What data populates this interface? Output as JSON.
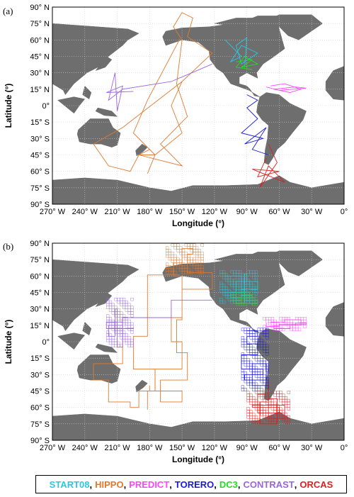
{
  "panels": [
    {
      "label": "(a)",
      "mode": "lines"
    },
    {
      "label": "(b)",
      "mode": "grid"
    }
  ],
  "axes": {
    "xlabel": "Longitude (°)",
    "ylabel": "Latitude (°)",
    "xticks": [
      "270° W",
      "240° W",
      "210° W",
      "180° W",
      "150° W",
      "120° W",
      "90° W",
      "60° W",
      "30° W",
      "0°"
    ],
    "yticks": [
      "90° N",
      "75° N",
      "60° N",
      "45° N",
      "30° N",
      "15° N",
      "0°",
      "15° S",
      "30° S",
      "45° S",
      "60° S",
      "75° S",
      "90° S"
    ]
  },
  "colors": {
    "land": "#6e6e6e",
    "ocean": "#ffffff",
    "grid": "#cfcfcf"
  },
  "campaigns": [
    {
      "name": "START08",
      "color": "#29c8e0"
    },
    {
      "name": "HIPPO",
      "color": "#e07a2e"
    },
    {
      "name": "PREDICT",
      "color": "#ff44ff"
    },
    {
      "name": "TORERO",
      "color": "#1a1ad8"
    },
    {
      "name": "DC3",
      "color": "#22dd22"
    },
    {
      "name": "CONTRAST",
      "color": "#9a66dd"
    },
    {
      "name": "ORCAS",
      "color": "#dd1f1f"
    }
  ],
  "chart_data": {
    "type": "map",
    "xlim": [
      -270,
      0
    ],
    "ylim": [
      -90,
      90
    ],
    "grid": true,
    "tracks": [
      {
        "campaign": "HIPPO",
        "points": [
          [
            -150,
            60
          ],
          [
            -158,
            72
          ],
          [
            -150,
            85
          ],
          [
            -140,
            80
          ],
          [
            -145,
            63
          ],
          [
            -122,
            48
          ],
          [
            -150,
            22
          ],
          [
            -160,
            0
          ],
          [
            -150,
            -25
          ],
          [
            -175,
            -45
          ],
          [
            -190,
            -45
          ],
          [
            -150,
            -55
          ],
          [
            -170,
            -35
          ],
          [
            -145,
            -10
          ],
          [
            -155,
            20
          ],
          [
            -150,
            60
          ]
        ]
      },
      {
        "campaign": "HIPPO",
        "points": [
          [
            -150,
            22
          ],
          [
            -205,
            -20
          ],
          [
            -232,
            -35
          ],
          [
            -218,
            -55
          ],
          [
            -198,
            -60
          ],
          [
            -190,
            -45
          ],
          [
            -180,
            -40
          ]
        ]
      },
      {
        "campaign": "HIPPO",
        "points": [
          [
            -152,
            61
          ],
          [
            -182,
            5
          ],
          [
            -195,
            -25
          ],
          [
            -175,
            -45
          ],
          [
            -182,
            -62
          ]
        ]
      },
      {
        "campaign": "START08",
        "points": [
          [
            -110,
            60
          ],
          [
            -95,
            45
          ],
          [
            -105,
            40
          ],
          [
            -95,
            55
          ],
          [
            -80,
            48
          ],
          [
            -95,
            38
          ],
          [
            -100,
            55
          ],
          [
            -90,
            62
          ],
          [
            -92,
            35
          ]
        ]
      },
      {
        "campaign": "DC3",
        "points": [
          [
            -100,
            40
          ],
          [
            -85,
            42
          ],
          [
            -95,
            35
          ],
          [
            -80,
            38
          ],
          [
            -92,
            45
          ],
          [
            -100,
            35
          ],
          [
            -85,
            33
          ]
        ]
      },
      {
        "campaign": "PREDICT",
        "points": [
          [
            -68,
            18
          ],
          [
            -55,
            20
          ],
          [
            -40,
            15
          ],
          [
            -50,
            12
          ],
          [
            -65,
            15
          ],
          [
            -45,
            17
          ],
          [
            -35,
            16
          ],
          [
            -60,
            14
          ],
          [
            -72,
            17
          ]
        ]
      },
      {
        "campaign": "TORERO",
        "points": [
          [
            -90,
            10
          ],
          [
            -80,
            5
          ],
          [
            -90,
            -2
          ],
          [
            -80,
            -12
          ],
          [
            -95,
            -25
          ],
          [
            -75,
            -30
          ],
          [
            -92,
            -35
          ],
          [
            -72,
            -20
          ],
          [
            -85,
            -40
          ],
          [
            -70,
            -45
          ]
        ]
      },
      {
        "campaign": "CONTRAST",
        "points": [
          [
            -122,
            38
          ],
          [
            -160,
            22
          ],
          [
            -205,
            15
          ],
          [
            -218,
            5
          ],
          [
            -212,
            30
          ],
          [
            -210,
            -5
          ],
          [
            -205,
            18
          ],
          [
            -220,
            12
          ],
          [
            -195,
            13
          ]
        ]
      },
      {
        "campaign": "ORCAS",
        "points": [
          [
            -72,
            -48
          ],
          [
            -80,
            -65
          ],
          [
            -60,
            -60
          ],
          [
            -85,
            -58
          ],
          [
            -55,
            -70
          ],
          [
            -70,
            -55
          ],
          [
            -78,
            -75
          ],
          [
            -62,
            -52
          ],
          [
            -70,
            -35
          ]
        ]
      }
    ],
    "regions": [
      {
        "campaign": "HIPPO",
        "lon": [
          -165,
          -130
        ],
        "lat": [
          62,
          88
        ]
      },
      {
        "campaign": "START08",
        "lon": [
          -115,
          -80
        ],
        "lat": [
          35,
          65
        ]
      },
      {
        "campaign": "DC3",
        "lon": [
          -105,
          -80
        ],
        "lat": [
          33,
          45
        ]
      },
      {
        "campaign": "PREDICT",
        "lon": [
          -75,
          -35
        ],
        "lat": [
          10,
          22
        ]
      },
      {
        "campaign": "TORERO",
        "lon": [
          -95,
          -70
        ],
        "lat": [
          -45,
          12
        ]
      },
      {
        "campaign": "CONTRAST",
        "lon": [
          -220,
          -195
        ],
        "lat": [
          -5,
          40
        ]
      },
      {
        "campaign": "ORCAS",
        "lon": [
          -90,
          -50
        ],
        "lat": [
          -75,
          -45
        ]
      }
    ]
  }
}
